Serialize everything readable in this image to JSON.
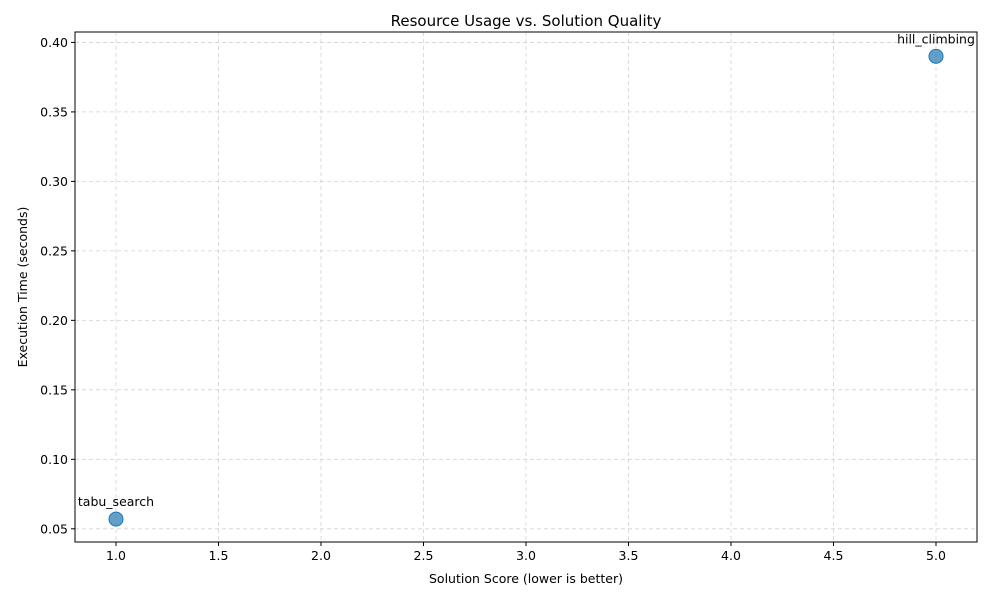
{
  "chart_data": {
    "type": "scatter",
    "title": "Resource Usage vs. Solution Quality",
    "xlabel": "Solution Score (lower is better)",
    "ylabel": "Execution Time (seconds)",
    "xlim": [
      0.8,
      5.2
    ],
    "ylim": [
      0.0405,
      0.4075
    ],
    "xticks": [
      1.0,
      1.5,
      2.0,
      2.5,
      3.0,
      3.5,
      4.0,
      4.5,
      5.0
    ],
    "yticks": [
      0.05,
      0.1,
      0.15,
      0.2,
      0.25,
      0.3,
      0.35,
      0.4
    ],
    "grid": true,
    "point_color": "#1f77b4",
    "points": [
      {
        "label": "tabu_search",
        "x": 1.0,
        "y": 0.057
      },
      {
        "label": "hill_climbing",
        "x": 5.0,
        "y": 0.39
      }
    ]
  }
}
